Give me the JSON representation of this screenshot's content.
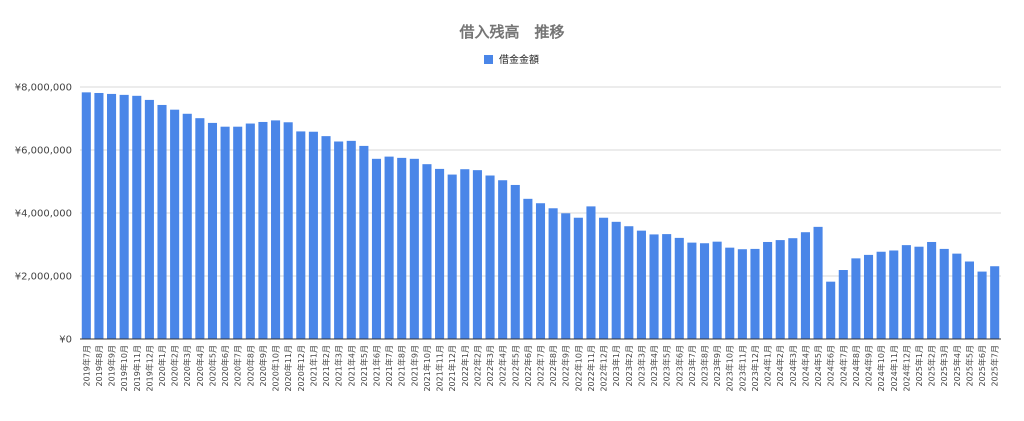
{
  "chart_data": {
    "type": "bar",
    "title": "借入残高　推移",
    "xlabel": "",
    "ylabel": "",
    "legend_position": "top",
    "grid": true,
    "ylim": [
      0,
      8000000
    ],
    "yticks": [
      {
        "value": 0,
        "label": "¥0"
      },
      {
        "value": 2000000,
        "label": "¥2,000,000"
      },
      {
        "value": 4000000,
        "label": "¥4,000,000"
      },
      {
        "value": 6000000,
        "label": "¥6,000,000"
      },
      {
        "value": 8000000,
        "label": "¥8,000,000"
      }
    ],
    "categories": [
      "2019年7月",
      "2019年8月",
      "2019年9月",
      "2019年10月",
      "2019年11月",
      "2019年12月",
      "2020年1月",
      "2020年2月",
      "2020年3月",
      "2020年4月",
      "2020年5月",
      "2020年6月",
      "2020年7月",
      "2020年8月",
      "2020年9月",
      "2020年10月",
      "2020年11月",
      "2020年12月",
      "2021年1月",
      "2021年2月",
      "2021年3月",
      "2021年4月",
      "2021年5月",
      "2021年6月",
      "2021年7月",
      "2021年8月",
      "2021年9月",
      "2021年10月",
      "2021年11月",
      "2021年12月",
      "2022年1月",
      "2022年2月",
      "2022年3月",
      "2022年4月",
      "2022年5月",
      "2022年6月",
      "2022年7月",
      "2022年8月",
      "2022年9月",
      "2022年10月",
      "2022年11月",
      "2022年12月",
      "2023年1月",
      "2023年2月",
      "2023年3月",
      "2023年4月",
      "2023年5月",
      "2023年6月",
      "2023年7月",
      "2023年8月",
      "2023年9月",
      "2023年10月",
      "2023年11月",
      "2023年12月",
      "2024年1月",
      "2024年2月",
      "2024年3月",
      "2024年4月",
      "2024年5月",
      "2024年6月",
      "2024年7月",
      "2024年8月",
      "2024年9月",
      "2024年10月",
      "2024年11月",
      "2024年12月",
      "2025年1月",
      "2025年2月",
      "2025年3月",
      "2025年4月",
      "2025年5月",
      "2025年6月",
      "2025年7月"
    ],
    "series": [
      {
        "name": "借金金額",
        "color": "#4a86e8",
        "values": [
          7830000,
          7810000,
          7780000,
          7750000,
          7720000,
          7590000,
          7430000,
          7280000,
          7150000,
          7010000,
          6860000,
          6740000,
          6740000,
          6840000,
          6890000,
          6940000,
          6880000,
          6590000,
          6580000,
          6440000,
          6270000,
          6290000,
          6130000,
          5720000,
          5790000,
          5750000,
          5720000,
          5550000,
          5400000,
          5220000,
          5390000,
          5360000,
          5190000,
          5040000,
          4890000,
          4450000,
          4310000,
          4150000,
          3990000,
          3850000,
          4210000,
          3850000,
          3720000,
          3580000,
          3440000,
          3320000,
          3330000,
          3210000,
          3060000,
          3040000,
          3090000,
          2900000,
          2850000,
          2860000,
          3080000,
          3140000,
          3200000,
          3390000,
          3560000,
          1820000,
          2190000,
          2560000,
          2670000,
          2770000,
          2810000,
          2980000,
          2930000,
          3080000,
          2860000,
          2710000,
          2460000,
          2140000,
          2310000
        ]
      }
    ]
  }
}
